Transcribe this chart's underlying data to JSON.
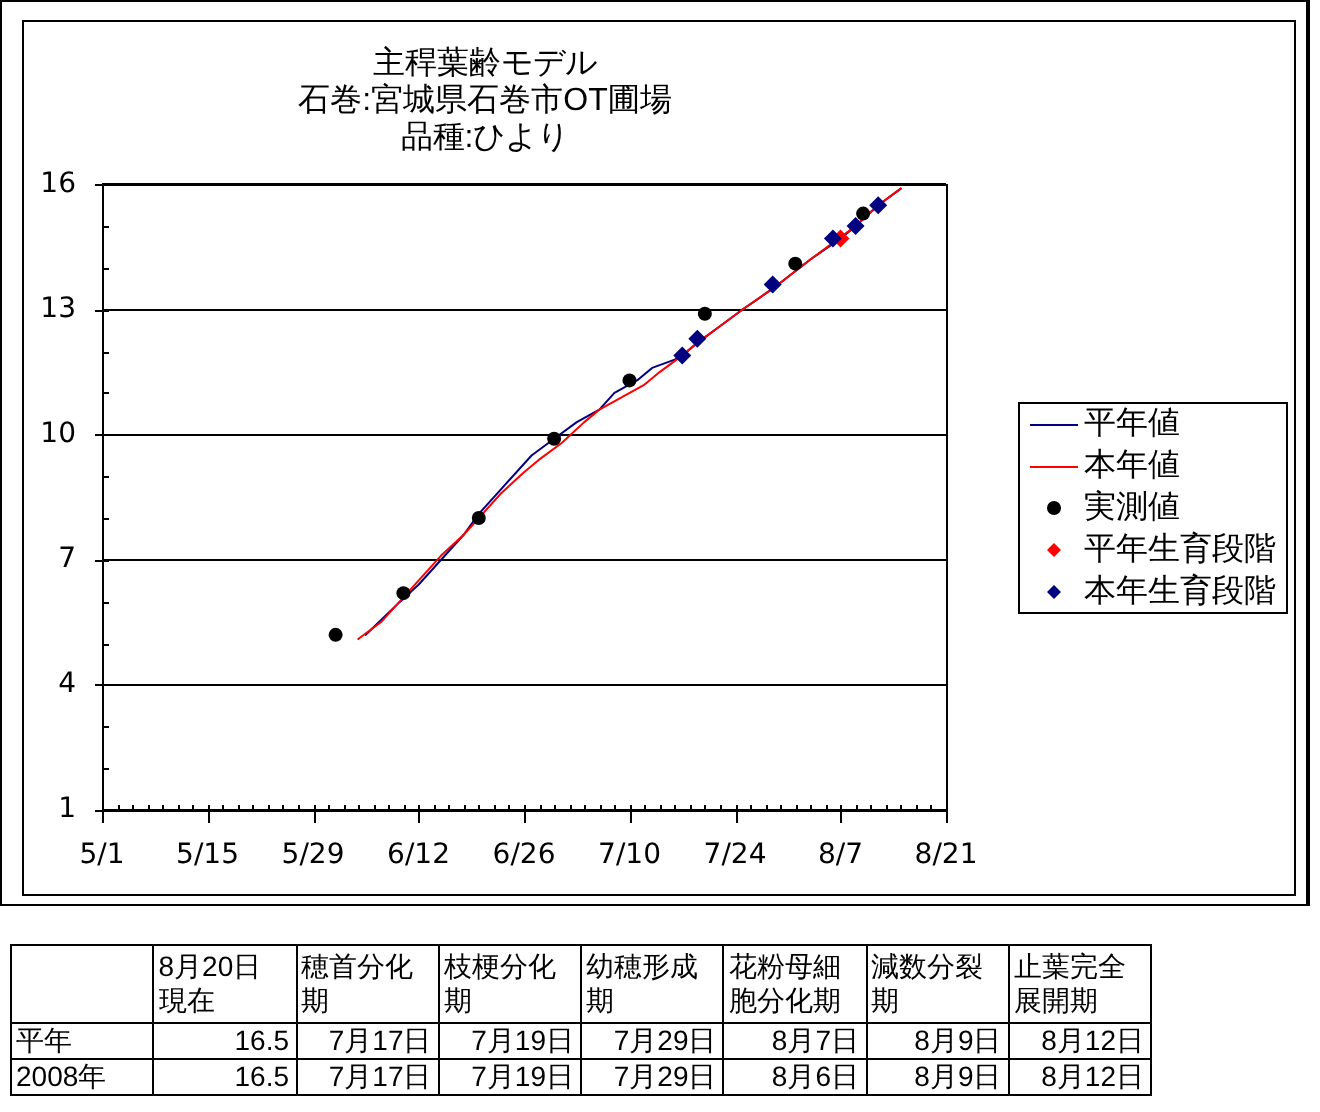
{
  "chart_data": [
    {
      "type": "line",
      "title": "主稈葉齢モデル",
      "subtitle": "石巻:宮城県石巻市OT圃場",
      "annotations": [
        "品種:ひより"
      ],
      "xlim": [
        "--05-01",
        "--08-21"
      ],
      "xticks": [
        {
          "value": "--05-01",
          "label": "5/1"
        },
        {
          "value": "--05-03",
          "label": null
        },
        {
          "value": "--05-05",
          "label": null
        },
        {
          "value": "--05-07",
          "label": null
        },
        {
          "value": "--05-09",
          "label": null
        },
        {
          "value": "--05-11",
          "label": null
        },
        {
          "value": "--05-13",
          "label": null
        },
        {
          "value": "--05-15",
          "label": "5/15"
        },
        {
          "value": "--05-17",
          "label": null
        },
        {
          "value": "--05-19",
          "label": null
        },
        {
          "value": "--05-21",
          "label": null
        },
        {
          "value": "--05-23",
          "label": null
        },
        {
          "value": "--05-25",
          "label": null
        },
        {
          "value": "--05-27",
          "label": null
        },
        {
          "value": "--05-29",
          "label": "5/29"
        },
        {
          "value": "--05-31",
          "label": null
        },
        {
          "value": "--06-02",
          "label": null
        },
        {
          "value": "--06-04",
          "label": null
        },
        {
          "value": "--06-06",
          "label": null
        },
        {
          "value": "--06-08",
          "label": null
        },
        {
          "value": "--06-10",
          "label": null
        },
        {
          "value": "--06-12",
          "label": "6/12"
        },
        {
          "value": "--06-14",
          "label": null
        },
        {
          "value": "--06-16",
          "label": null
        },
        {
          "value": "--06-18",
          "label": null
        },
        {
          "value": "--06-20",
          "label": null
        },
        {
          "value": "--06-22",
          "label": null
        },
        {
          "value": "--06-24",
          "label": null
        },
        {
          "value": "--06-26",
          "label": "6/26"
        },
        {
          "value": "--06-28",
          "label": null
        },
        {
          "value": "--06-30",
          "label": null
        },
        {
          "value": "--07-02",
          "label": null
        },
        {
          "value": "--07-04",
          "label": null
        },
        {
          "value": "--07-06",
          "label": null
        },
        {
          "value": "--07-08",
          "label": null
        },
        {
          "value": "--07-10",
          "label": "7/10"
        },
        {
          "value": "--07-12",
          "label": null
        },
        {
          "value": "--07-14",
          "label": null
        },
        {
          "value": "--07-16",
          "label": null
        },
        {
          "value": "--07-18",
          "label": null
        },
        {
          "value": "--07-20",
          "label": null
        },
        {
          "value": "--07-22",
          "label": null
        },
        {
          "value": "--07-24",
          "label": "7/24"
        },
        {
          "value": "--07-26",
          "label": null
        },
        {
          "value": "--07-28",
          "label": null
        },
        {
          "value": "--07-30",
          "label": null
        },
        {
          "value": "--08-01",
          "label": null
        },
        {
          "value": "--08-03",
          "label": null
        },
        {
          "value": "--08-05",
          "label": null
        },
        {
          "value": "--08-07",
          "label": "8/7"
        },
        {
          "value": "--08-09",
          "label": null
        },
        {
          "value": "--08-11",
          "label": null
        },
        {
          "value": "--08-13",
          "label": null
        },
        {
          "value": "--08-15",
          "label": null
        },
        {
          "value": "--08-17",
          "label": null
        },
        {
          "value": "--08-19",
          "label": null
        },
        {
          "value": "--08-21",
          "label": "8/21"
        }
      ],
      "ylim": [
        1,
        16
      ],
      "yticks": [
        1,
        {
          "value": 2,
          "label": null
        },
        {
          "value": 3,
          "label": null
        },
        4,
        {
          "value": 5,
          "label": null
        },
        {
          "value": 6,
          "label": null
        },
        7,
        {
          "value": 8,
          "label": null
        },
        {
          "value": 9,
          "label": null
        },
        10,
        {
          "value": 11,
          "label": null
        },
        {
          "value": 12,
          "label": null
        },
        13,
        {
          "value": 14,
          "label": null
        },
        {
          "value": 15,
          "label": null
        },
        16
      ],
      "grid": "y",
      "legend": "right",
      "series": [
        {
          "name": "平年値",
          "type": "line",
          "color": "#000080",
          "x": [
            "--06-05",
            "--06-09",
            "--06-12",
            "--06-15",
            "--06-18",
            "--06-20",
            "--06-23",
            "--06-27",
            "--06-30",
            "--07-03",
            "--07-06",
            "--07-08",
            "--07-11",
            "--07-13",
            "--07-16",
            "--07-17",
            "--07-19",
            "--07-22",
            "--07-25",
            "--07-29",
            "--08-03",
            "--08-07",
            "--08-09",
            "--08-12",
            "--08-15"
          ],
          "values": [
            5.2,
            5.9,
            6.4,
            7.0,
            7.6,
            8.1,
            8.7,
            9.5,
            9.9,
            10.3,
            10.6,
            11.0,
            11.3,
            11.6,
            11.8,
            11.9,
            12.2,
            12.6,
            13.0,
            13.5,
            14.2,
            14.7,
            15.0,
            15.5,
            15.9
          ]
        },
        {
          "name": "本年値",
          "type": "line",
          "color": "#ff0000",
          "x": [
            "--06-04",
            "--06-07",
            "--06-10",
            "--06-12",
            "--06-15",
            "--06-18",
            "--06-20",
            "--06-23",
            "--06-26",
            "--06-28",
            "--07-01",
            "--07-04",
            "--07-06",
            "--07-09",
            "--07-12",
            "--07-14",
            "--07-17",
            "--07-19",
            "--07-22",
            "--07-25",
            "--07-29",
            "--08-03",
            "--08-06",
            "--08-09",
            "--08-12",
            "--08-15"
          ],
          "values": [
            5.1,
            5.5,
            6.1,
            6.5,
            7.1,
            7.6,
            8.0,
            8.6,
            9.1,
            9.4,
            9.8,
            10.3,
            10.6,
            10.9,
            11.2,
            11.5,
            11.9,
            12.2,
            12.6,
            13.0,
            13.5,
            14.2,
            14.6,
            15.0,
            15.5,
            15.9
          ]
        },
        {
          "name": "実測値",
          "type": "scatter",
          "marker": "circle",
          "color": "#000000",
          "x": [
            "--06-01",
            "--06-10",
            "--06-20",
            "--06-30",
            "--07-10",
            "--07-20",
            "--08-01",
            "--08-10"
          ],
          "values": [
            5.2,
            6.2,
            8.0,
            9.9,
            11.3,
            12.9,
            14.1,
            15.3
          ]
        },
        {
          "name": "平年生育段階",
          "type": "scatter",
          "marker": "diamond",
          "color": "#ff0000",
          "x": [
            "--08-07"
          ],
          "values": [
            14.7
          ]
        },
        {
          "name": "本年生育段階",
          "type": "scatter",
          "marker": "diamond",
          "color": "#000080",
          "x": [
            "--07-17",
            "--07-19",
            "--07-29",
            "--08-06",
            "--08-09",
            "--08-12"
          ],
          "values": [
            11.9,
            12.3,
            13.6,
            14.7,
            15.0,
            15.5
          ]
        }
      ]
    },
    {
      "type": "other",
      "categories": [
        "8月20日現在",
        "穂首分化期",
        "枝梗分化期",
        "幼穂形成期",
        "花粉母細胞分化期",
        "減数分裂期",
        "止葉完全展開期"
      ],
      "y_categories": [
        "平年",
        "2008年"
      ],
      "cell_labels": [
        [
          "16.5",
          "7月17日",
          "7月19日",
          "7月29日",
          "8月7日",
          "8月9日",
          "8月12日"
        ],
        [
          "16.5",
          "7月17日",
          "7月19日",
          "7月29日",
          "8月6日",
          "8月9日",
          "8月12日"
        ]
      ]
    }
  ]
}
